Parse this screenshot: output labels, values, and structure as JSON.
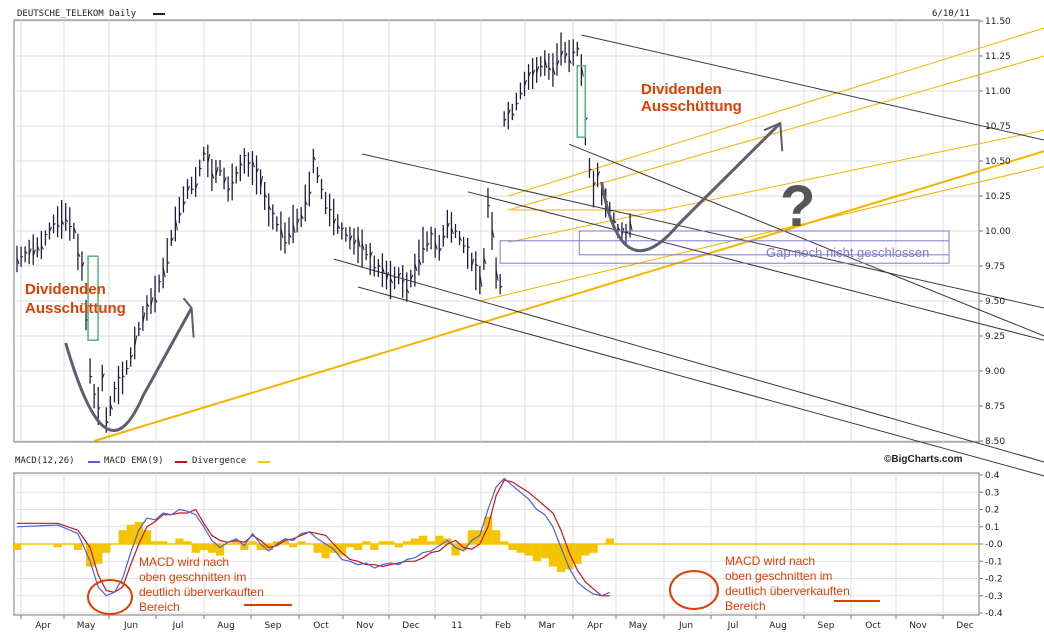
{
  "header": {
    "symbol": "DEUTSCHE_TELEKOM Daily",
    "date": "6/10/11",
    "brand": "©BigCharts.com"
  },
  "macd_header": {
    "macd": "MACD(12,26)",
    "ema": "MACD EMA(9)",
    "divergence": "Divergence"
  },
  "colors": {
    "price": "#1e1e3c",
    "trend_orange": "#f5b400",
    "trend_gray": "#3a3a3a",
    "annotation_red": "#e23c00",
    "gap_box": "#7a7ad0",
    "macd_line": "#4e5fe0",
    "ema_line": "#d01010",
    "divergence": "#f5c400",
    "box_green": "#4fb57a",
    "arrow": "#5e5e6e"
  },
  "chart_data": [
    {
      "type": "line",
      "title": "DEUTSCHE_TELEKOM Daily",
      "ylim": [
        8.5,
        11.5
      ],
      "yticks": [
        "11.50",
        "11.25",
        "11.00",
        "10.75",
        "10.50",
        "10.25",
        "10.00",
        "9.75",
        "9.50",
        "9.25",
        "9.00",
        "8.75",
        "8.50"
      ],
      "months": [
        "Apr",
        "May",
        "Jun",
        "Jul",
        "Aug",
        "Sep",
        "Oct",
        "Nov",
        "Dec",
        "11",
        "Feb",
        "Mar",
        "Apr",
        "May",
        "Jun",
        "Jul",
        "Aug",
        "Sep",
        "Oct",
        "Nov",
        "Dec"
      ],
      "series": [
        {
          "values": [
            [
              0,
              9.8
            ],
            [
              3,
              9.85
            ],
            [
              6,
              9.9
            ],
            [
              9,
              10.05
            ],
            [
              12,
              10.1
            ],
            [
              14,
              10.0
            ],
            [
              15,
              9.85
            ],
            [
              16,
              9.75
            ],
            [
              17,
              9.4
            ],
            [
              18,
              9.0
            ],
            [
              19,
              8.82
            ],
            [
              20,
              8.75
            ],
            [
              21,
              8.95
            ],
            [
              22,
              8.65
            ],
            [
              24,
              8.85
            ],
            [
              26,
              8.95
            ],
            [
              28,
              9.1
            ],
            [
              30,
              9.3
            ],
            [
              32,
              9.45
            ],
            [
              34,
              9.55
            ],
            [
              36,
              9.7
            ],
            [
              38,
              9.95
            ],
            [
              40,
              10.15
            ],
            [
              42,
              10.3
            ],
            [
              44,
              10.35
            ],
            [
              46,
              10.55
            ],
            [
              47,
              10.5
            ],
            [
              48,
              10.4
            ],
            [
              50,
              10.45
            ],
            [
              52,
              10.3
            ],
            [
              54,
              10.4
            ],
            [
              56,
              10.5
            ],
            [
              58,
              10.45
            ],
            [
              60,
              10.35
            ],
            [
              62,
              10.15
            ],
            [
              64,
              10.05
            ],
            [
              66,
              9.95
            ],
            [
              68,
              10.05
            ],
            [
              70,
              10.1
            ],
            [
              72,
              10.3
            ],
            [
              73,
              10.5
            ],
            [
              74,
              10.4
            ],
            [
              76,
              10.2
            ],
            [
              78,
              10.1
            ],
            [
              80,
              10.0
            ],
            [
              82,
              9.95
            ],
            [
              84,
              9.9
            ],
            [
              86,
              9.85
            ],
            [
              88,
              9.75
            ],
            [
              90,
              9.72
            ],
            [
              92,
              9.65
            ],
            [
              94,
              9.68
            ],
            [
              96,
              9.6
            ],
            [
              98,
              9.72
            ],
            [
              100,
              9.9
            ],
            [
              102,
              9.95
            ],
            [
              104,
              9.88
            ],
            [
              106,
              10.05
            ],
            [
              108,
              10.0
            ],
            [
              110,
              9.9
            ],
            [
              112,
              9.78
            ],
            [
              114,
              9.65
            ],
            [
              115,
              9.8
            ],
            [
              116,
              10.2
            ],
            [
              117,
              10.0
            ],
            [
              118,
              9.7
            ],
            [
              119,
              9.62
            ],
            [
              120,
              10.8
            ],
            [
              122,
              10.85
            ],
            [
              124,
              11.0
            ],
            [
              126,
              11.1
            ],
            [
              128,
              11.15
            ],
            [
              130,
              11.2
            ],
            [
              132,
              11.15
            ],
            [
              134,
              11.3
            ],
            [
              136,
              11.25
            ],
            [
              138,
              11.3
            ],
            [
              139,
              11.15
            ],
            [
              140,
              10.75
            ],
            [
              141,
              10.45
            ],
            [
              142,
              10.3
            ],
            [
              143,
              10.4
            ],
            [
              144,
              10.25
            ],
            [
              146,
              10.15
            ],
            [
              148,
              10.0
            ],
            [
              150,
              9.98
            ],
            [
              152,
              10.1
            ]
          ]
        }
      ],
      "annotations": [
        "Dividenden Ausschüttung",
        "Dividenden Ausschüttung",
        "?",
        "Gap noch nicht geschlossen"
      ]
    },
    {
      "type": "line",
      "title": "MACD(12,26)",
      "ylim": [
        -0.4,
        0.4
      ],
      "yticks": [
        "0.4",
        "0.3",
        "0.2",
        "0.1",
        "-0.0",
        "-0.1",
        "-0.2",
        "-0.3",
        "-0.4"
      ],
      "series": [
        {
          "name": "MACD EMA(9)",
          "values": [
            [
              0,
              0.12
            ],
            [
              10,
              0.12
            ],
            [
              15,
              0.08
            ],
            [
              18,
              -0.02
            ],
            [
              20,
              -0.18
            ],
            [
              22,
              -0.27
            ],
            [
              24,
              -0.28
            ],
            [
              26,
              -0.25
            ],
            [
              28,
              -0.12
            ],
            [
              30,
              0.0
            ],
            [
              32,
              0.1
            ],
            [
              34,
              0.13
            ],
            [
              36,
              0.17
            ],
            [
              38,
              0.17
            ],
            [
              40,
              0.18
            ],
            [
              42,
              0.18
            ],
            [
              44,
              0.2
            ],
            [
              46,
              0.12
            ],
            [
              48,
              0.05
            ],
            [
              50,
              0.02
            ],
            [
              52,
              0.01
            ],
            [
              54,
              0.02
            ],
            [
              56,
              0.01
            ],
            [
              58,
              0.05
            ],
            [
              60,
              0.02
            ],
            [
              62,
              -0.02
            ],
            [
              64,
              -0.01
            ],
            [
              66,
              0.02
            ],
            [
              68,
              0.03
            ],
            [
              70,
              0.05
            ],
            [
              72,
              0.07
            ],
            [
              74,
              0.06
            ],
            [
              76,
              0.05
            ],
            [
              78,
              0.0
            ],
            [
              80,
              -0.05
            ],
            [
              82,
              -0.09
            ],
            [
              84,
              -0.1
            ],
            [
              86,
              -0.12
            ],
            [
              88,
              -0.12
            ],
            [
              90,
              -0.13
            ],
            [
              92,
              -0.12
            ],
            [
              94,
              -0.11
            ],
            [
              96,
              -0.1
            ],
            [
              98,
              -0.1
            ],
            [
              100,
              -0.08
            ],
            [
              102,
              -0.05
            ],
            [
              104,
              -0.04
            ],
            [
              106,
              0.0
            ],
            [
              108,
              0.02
            ],
            [
              110,
              -0.02
            ],
            [
              112,
              -0.03
            ],
            [
              114,
              0.0
            ],
            [
              116,
              0.1
            ],
            [
              118,
              0.28
            ],
            [
              120,
              0.37
            ],
            [
              122,
              0.36
            ],
            [
              124,
              0.33
            ],
            [
              126,
              0.3
            ],
            [
              128,
              0.26
            ],
            [
              130,
              0.22
            ],
            [
              132,
              0.18
            ],
            [
              134,
              0.08
            ],
            [
              136,
              -0.05
            ],
            [
              138,
              -0.15
            ],
            [
              140,
              -0.22
            ],
            [
              142,
              -0.26
            ],
            [
              144,
              -0.3
            ],
            [
              146,
              -0.3
            ]
          ]
        },
        {
          "name": "MACD(12,26)",
          "values": [
            [
              0,
              0.1
            ],
            [
              10,
              0.11
            ],
            [
              15,
              0.06
            ],
            [
              18,
              -0.1
            ],
            [
              20,
              -0.25
            ],
            [
              22,
              -0.3
            ],
            [
              24,
              -0.28
            ],
            [
              26,
              -0.2
            ],
            [
              28,
              -0.05
            ],
            [
              30,
              0.08
            ],
            [
              32,
              0.15
            ],
            [
              34,
              0.14
            ],
            [
              36,
              0.18
            ],
            [
              38,
              0.17
            ],
            [
              40,
              0.2
            ],
            [
              42,
              0.19
            ],
            [
              44,
              0.17
            ],
            [
              46,
              0.1
            ],
            [
              48,
              0.02
            ],
            [
              50,
              -0.02
            ],
            [
              52,
              0.01
            ],
            [
              54,
              0.03
            ],
            [
              56,
              -0.01
            ],
            [
              58,
              0.06
            ],
            [
              60,
              0.0
            ],
            [
              62,
              -0.04
            ],
            [
              64,
              0.0
            ],
            [
              66,
              0.03
            ],
            [
              68,
              0.02
            ],
            [
              70,
              0.06
            ],
            [
              72,
              0.07
            ],
            [
              74,
              0.03
            ],
            [
              76,
              0.0
            ],
            [
              78,
              -0.03
            ],
            [
              80,
              -0.09
            ],
            [
              82,
              -0.1
            ],
            [
              84,
              -0.12
            ],
            [
              86,
              -0.11
            ],
            [
              88,
              -0.14
            ],
            [
              90,
              -0.12
            ],
            [
              92,
              -0.11
            ],
            [
              94,
              -0.12
            ],
            [
              96,
              -0.09
            ],
            [
              98,
              -0.08
            ],
            [
              100,
              -0.05
            ],
            [
              102,
              -0.04
            ],
            [
              104,
              -0.01
            ],
            [
              106,
              0.02
            ],
            [
              108,
              -0.02
            ],
            [
              110,
              -0.04
            ],
            [
              112,
              0.02
            ],
            [
              114,
              0.05
            ],
            [
              116,
              0.2
            ],
            [
              118,
              0.33
            ],
            [
              120,
              0.38
            ],
            [
              122,
              0.34
            ],
            [
              124,
              0.3
            ],
            [
              126,
              0.26
            ],
            [
              128,
              0.2
            ],
            [
              130,
              0.17
            ],
            [
              132,
              0.1
            ],
            [
              134,
              -0.02
            ],
            [
              136,
              -0.14
            ],
            [
              138,
              -0.22
            ],
            [
              140,
              -0.26
            ],
            [
              142,
              -0.29
            ],
            [
              144,
              -0.3
            ],
            [
              146,
              -0.28
            ]
          ]
        }
      ],
      "annotations": [
        "MACD wird nach oben geschnitten im deutlich überverkauften Bereich",
        "MACD wird nach oben geschnitten im deutlich überverkauften Bereich"
      ]
    }
  ]
}
